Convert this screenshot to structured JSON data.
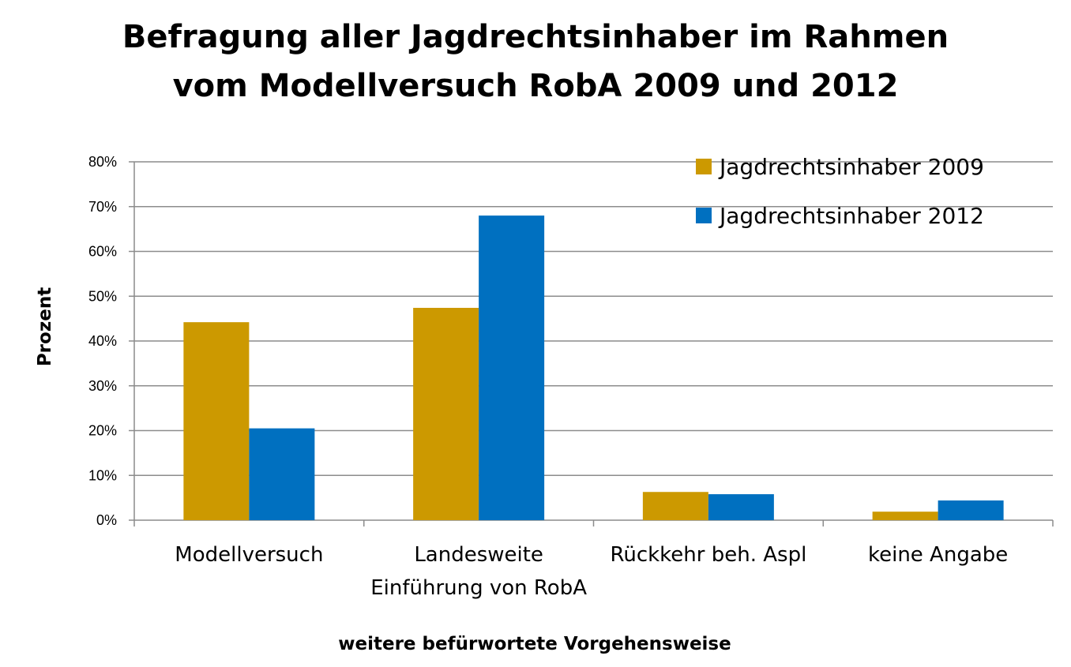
{
  "title_lines": [
    "Befragung aller Jagdrechtsinhaber im Rahmen",
    "vom Modellversuch RobA 2009 und 2012"
  ],
  "chart_data": {
    "type": "bar",
    "title": "Befragung aller Jagdrechtsinhaber im Rahmen vom Modellversuch RobA 2009 und 2012",
    "xlabel": "weitere befürwortete Vorgehensweise",
    "ylabel": "Prozent",
    "categories": [
      [
        "Modellversuch"
      ],
      [
        "Landesweite",
        "Einführung von RobA"
      ],
      [
        "Rückkehr beh. Aspl"
      ],
      [
        "keine Angabe"
      ]
    ],
    "series": [
      {
        "name": "Jagdrechtsinhaber 2009",
        "color": "#cc9900",
        "values": [
          44.2,
          47.4,
          6.3,
          1.9
        ]
      },
      {
        "name": "Jagdrechtsinhaber 2012",
        "color": "#0070c0",
        "values": [
          20.5,
          68.0,
          5.8,
          4.4
        ]
      }
    ],
    "ylim": [
      0,
      80
    ],
    "yticks": [
      0,
      10,
      20,
      30,
      40,
      50,
      60,
      70,
      80
    ],
    "ytick_labels": [
      "0%",
      "10%",
      "20%",
      "30%",
      "40%",
      "50%",
      "60%",
      "70%",
      "80%"
    ],
    "grid": true,
    "legend_position": "top-right"
  }
}
